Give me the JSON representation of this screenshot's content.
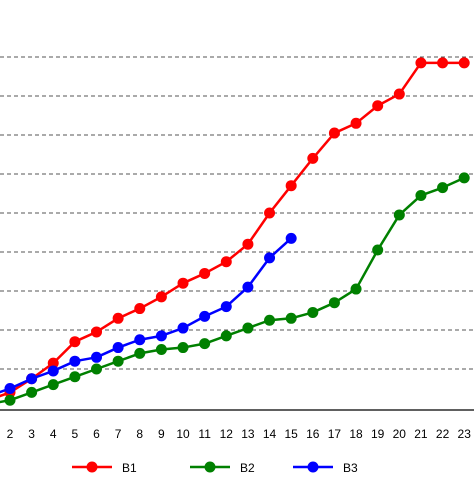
{
  "chart_data": {
    "type": "line",
    "grid": "horizontal dashed",
    "legend_position": "bottom",
    "x_ticks": [
      "2",
      "3",
      "4",
      "5",
      "6",
      "7",
      "8",
      "9",
      "10",
      "11",
      "12",
      "13",
      "14",
      "15",
      "16",
      "17",
      "18",
      "19",
      "20",
      "21",
      "22",
      "23"
    ],
    "xlim": [
      1.6,
      23.5
    ],
    "ylim": [
      0,
      10
    ],
    "gridlines": [
      1,
      2,
      3,
      4,
      5,
      6,
      7,
      8,
      9
    ],
    "series": [
      {
        "name": "B1",
        "color": "#ff0000",
        "x": [
          1,
          2,
          3,
          4,
          5,
          6,
          7,
          8,
          9,
          10,
          11,
          12,
          13,
          14,
          15,
          16,
          17,
          18,
          19,
          20,
          21,
          22,
          23
        ],
        "y": [
          0.2,
          0.4,
          0.75,
          1.15,
          1.7,
          1.95,
          2.3,
          2.55,
          2.85,
          3.2,
          3.45,
          3.75,
          4.2,
          5.0,
          5.7,
          6.4,
          7.05,
          7.3,
          7.75,
          8.05,
          8.85,
          8.85,
          8.85
        ]
      },
      {
        "name": "B2",
        "color": "#008000",
        "x": [
          1,
          2,
          3,
          4,
          5,
          6,
          7,
          8,
          9,
          10,
          11,
          12,
          13,
          14,
          15,
          16,
          17,
          18,
          19,
          20,
          21,
          22,
          23
        ],
        "y": [
          0.1,
          0.2,
          0.4,
          0.6,
          0.8,
          1.0,
          1.2,
          1.4,
          1.5,
          1.55,
          1.65,
          1.85,
          2.05,
          2.25,
          2.3,
          2.45,
          2.7,
          3.05,
          4.05,
          4.95,
          5.45,
          5.65,
          5.9
        ]
      },
      {
        "name": "B3",
        "color": "#0000ff",
        "x": [
          1,
          2,
          3,
          4,
          5,
          6,
          7,
          8,
          9,
          10,
          11,
          12,
          13,
          14,
          15
        ],
        "y": [
          0.3,
          0.5,
          0.75,
          0.95,
          1.2,
          1.3,
          1.55,
          1.75,
          1.85,
          2.05,
          2.35,
          2.6,
          3.1,
          3.85,
          4.35
        ]
      }
    ]
  }
}
